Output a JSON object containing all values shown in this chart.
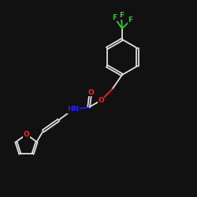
{
  "background_color": "#111111",
  "atom_colors": {
    "C": "#e0e0e0",
    "O": "#ff2020",
    "N": "#2020ff",
    "F": "#33cc33"
  },
  "bond_color": "#e0e0e0",
  "figsize": [
    2.5,
    2.5
  ],
  "dpi": 100,
  "xlim": [
    0,
    10
  ],
  "ylim": [
    0,
    10
  ]
}
